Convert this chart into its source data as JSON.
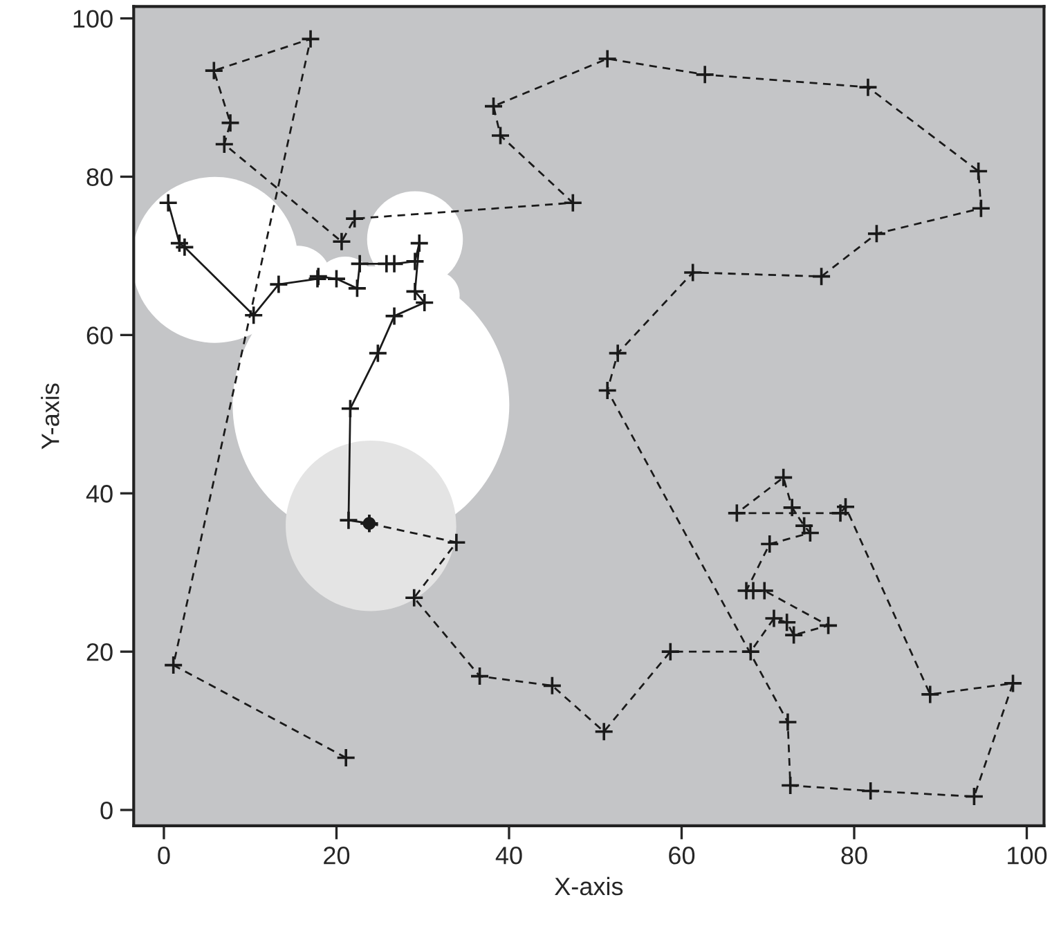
{
  "chart_data": {
    "type": "line",
    "xlabel": "X-axis",
    "ylabel": "Y-axis",
    "xlim": [
      -3.5,
      102
    ],
    "ylim": [
      -2,
      101.5
    ],
    "xticks": [
      0,
      20,
      40,
      60,
      80,
      100
    ],
    "yticks": [
      0,
      20,
      40,
      60,
      80,
      100
    ],
    "grid": false,
    "legend": false,
    "series": [
      {
        "type": "bubble",
        "color": "#ffffff",
        "x": [
          5.9,
          29.1,
          24.0,
          15.5,
          31.5,
          21.0
        ],
        "values": [
          69.5,
          72.1,
          51.2,
          67.0,
          65.0,
          66.0
        ],
        "sizes": [
          0.36,
          0.12,
          1,
          0.06,
          0.03,
          0.05
        ]
      },
      {
        "type": "bubble",
        "color": "#e4e4e4",
        "x": [
          24.0
        ],
        "values": [
          35.9
        ],
        "sizes": [
          0.38
        ]
      },
      {
        "color": "#1a1a1a",
        "marker": "cross",
        "line_style": "dashed",
        "x": [
          21.1,
          1.1,
          17.0,
          5.8,
          7.7,
          7.0,
          20.6,
          22.1,
          47.4,
          39.0,
          38.2,
          51.4,
          62.7,
          81.6,
          94.4,
          94.7,
          82.6,
          76.2,
          61.3,
          52.6,
          51.4,
          72.3,
          72.6,
          81.9,
          93.9,
          98.4,
          88.8,
          79.0,
          78.4,
          66.4,
          71.8,
          72.8,
          74.2,
          74.9,
          70.2,
          67.5,
          68.3,
          69.6,
          77.0,
          73.0,
          72.2,
          70.7,
          68.0,
          58.7,
          51.0,
          45.0,
          36.6,
          29.0,
          33.9,
          23.8
        ],
        "values": [
          6.6,
          18.3,
          97.4,
          93.4,
          86.8,
          84.1,
          71.8,
          74.7,
          76.7,
          85.2,
          88.9,
          94.9,
          92.9,
          91.3,
          80.7,
          76.0,
          72.8,
          67.4,
          67.9,
          57.7,
          53.0,
          11.1,
          3.1,
          2.4,
          1.7,
          16.0,
          14.6,
          38.3,
          37.5,
          37.5,
          42.0,
          38.2,
          35.9,
          35.0,
          33.6,
          27.7,
          27.7,
          27.7,
          23.3,
          22.1,
          23.7,
          24.2,
          20.0,
          20.0,
          9.9,
          15.7,
          16.9,
          26.8,
          33.8,
          36.2
        ]
      },
      {
        "color": "#1a1a1a",
        "marker": "cross",
        "line_style": "solid",
        "x": [
          0.5,
          1.8,
          2.4,
          10.4,
          13.3,
          17.8,
          17.9,
          20.0,
          22.4,
          22.7,
          25.8,
          26.7,
          29.1,
          29.6,
          29.1,
          30.2,
          26.7,
          24.8,
          21.6,
          21.4,
          23.8
        ],
        "values": [
          76.7,
          71.6,
          71.1,
          62.5,
          66.4,
          67.1,
          67.4,
          67.1,
          65.9,
          69.0,
          69.0,
          69.0,
          69.3,
          71.6,
          65.5,
          64.1,
          62.4,
          57.7,
          50.7,
          36.6,
          36.2
        ]
      },
      {
        "type": "scatter",
        "color": "#1a1a1a",
        "marker": "circle",
        "x": [
          23.8
        ],
        "values": [
          36.2
        ]
      }
    ]
  }
}
